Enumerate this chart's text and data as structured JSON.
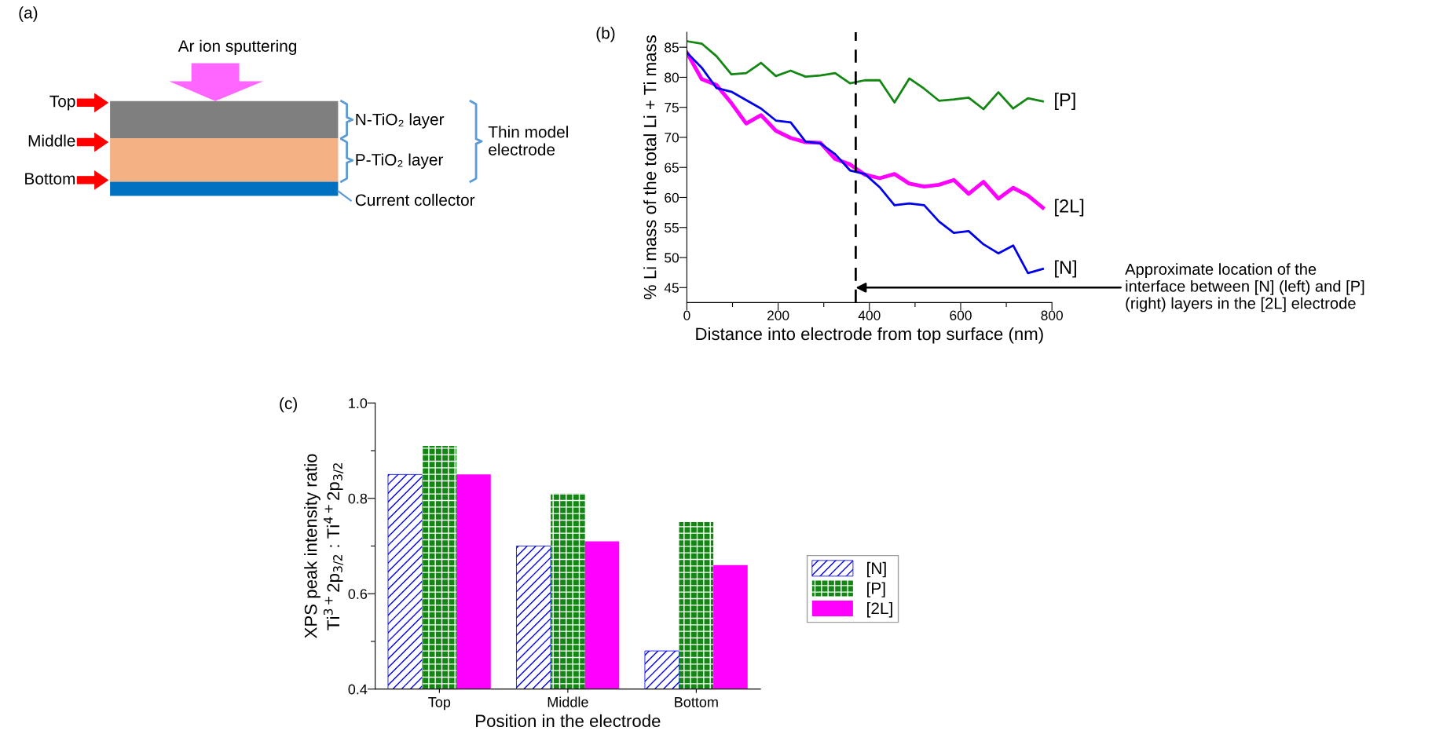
{
  "chart_data": [
    {
      "type": "other",
      "title": "(a)",
      "annotations": [
        "Ar ion sputtering",
        "Top",
        "Middle",
        "Bottom",
        "N-TiO₂ layer",
        "P-TiO₂ layer",
        "Thin model\nelectrode",
        "Current collector"
      ]
    },
    {
      "type": "line",
      "title": "(b)",
      "xlabel": "Distance into electrode from top surface (nm)",
      "ylabel": "% Li mass of the total Li + Ti mass",
      "x": [
        0,
        32.5,
        65,
        97.5,
        130,
        162.5,
        195,
        227.5,
        260,
        292.5,
        325,
        357.5,
        390,
        422.5,
        455,
        487.5,
        520,
        552.5,
        585,
        617.5,
        650,
        682.5,
        715,
        747.5,
        780
      ],
      "series": [
        {
          "name": "[P]",
          "color": "#138613",
          "values": [
            86.0,
            85.6,
            83.5,
            80.5,
            80.7,
            82.4,
            80.2,
            81.1,
            80.1,
            80.3,
            80.7,
            79.0,
            79.5,
            79.5,
            75.8,
            79.8,
            78.1,
            76.1,
            76.3,
            76.6,
            74.7,
            77.5,
            74.8,
            76.5,
            76.0
          ]
        },
        {
          "name": "[2L]",
          "color": "#ff00ff",
          "values": [
            84.1,
            79.7,
            78.7,
            75.7,
            72.3,
            73.7,
            71.1,
            69.9,
            69.2,
            69.1,
            66.4,
            65.5,
            63.8,
            63.2,
            63.9,
            62.3,
            61.8,
            62.1,
            62.9,
            60.6,
            62.6,
            59.8,
            61.6,
            60.3,
            58.3
          ]
        },
        {
          "name": "[N]",
          "color": "#0000ee",
          "values": [
            84.1,
            81.6,
            78.2,
            77.6,
            76.2,
            74.8,
            72.8,
            72.5,
            69.3,
            69.0,
            67.2,
            64.5,
            63.9,
            61.7,
            58.7,
            59.0,
            58.7,
            56.0,
            54.1,
            54.4,
            52.2,
            50.7,
            52.0,
            47.4,
            48.1
          ]
        }
      ],
      "xlim": [
        0,
        800
      ],
      "xticks": [
        0,
        {
          "value": 100,
          "label": null
        },
        200,
        {
          "value": 300,
          "label": null
        },
        400,
        {
          "value": 500,
          "label": null
        },
        600,
        {
          "value": 700,
          "label": null
        },
        800
      ],
      "ylim": [
        42.5,
        87.5
      ],
      "yticks": [
        45,
        50,
        55,
        60,
        65,
        70,
        75,
        80,
        85
      ],
      "ref_lines": [
        {
          "axis": "x",
          "value": 370,
          "color": "#000000",
          "line_style": "dashed"
        }
      ],
      "annotations": [
        {
          "text": "Approximate location of the\ninterface between [N] (left) and [P]\n(right) layers in the [2L] electrode",
          "x": 370,
          "y": 45
        }
      ],
      "grid": false,
      "legend": false
    },
    {
      "type": "bar",
      "title": "(c)",
      "xlabel": "Position in the electrode",
      "ylabel": "XPS peak intensity ratio\nTi$^{3+}$2p$_{3/2}$ : Ti$^{4+}$2p$_{3/2}$",
      "categories": [
        "Top",
        "Middle",
        "Bottom"
      ],
      "series": [
        {
          "name": "[N]",
          "color": "#0000ee",
          "values": [
            0.85,
            0.7,
            0.48
          ]
        },
        {
          "name": "[P]",
          "color": "#138613",
          "values": [
            0.91,
            0.81,
            0.75
          ]
        },
        {
          "name": "[2L]",
          "color": "#ff00ff",
          "values": [
            0.85,
            0.71,
            0.66
          ]
        }
      ],
      "ylim": [
        0.4,
        1.0
      ],
      "yticks": [
        0.4,
        {
          "value": 0.5,
          "label": null
        },
        0.6,
        {
          "value": 0.7,
          "label": null
        },
        0.8,
        {
          "value": 0.9,
          "label": null
        },
        {
          "value": 1.0,
          "label": "1.0"
        }
      ],
      "grid": false,
      "legend": "right"
    }
  ]
}
